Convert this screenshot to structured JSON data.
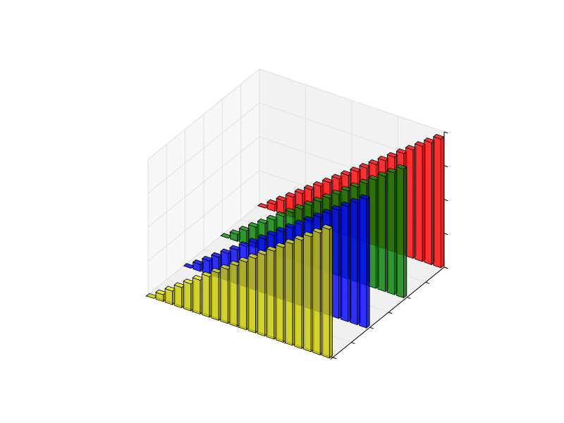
{
  "chart_data": {
    "type": "bar3d",
    "x": [
      0,
      1,
      2,
      3,
      4,
      5,
      6,
      7,
      8,
      9,
      10,
      11,
      12,
      13,
      14,
      15,
      16,
      17,
      18,
      19
    ],
    "series": [
      {
        "color": "#ff0000",
        "depth": 30,
        "values": [
          0,
          1,
          2,
          3,
          4,
          5,
          6,
          7,
          8,
          9,
          10,
          11,
          12,
          13,
          14,
          15,
          16,
          17,
          18,
          19
        ]
      },
      {
        "color": "#008000",
        "depth": 20,
        "values": [
          0,
          1,
          2,
          3,
          4,
          5,
          6,
          7,
          8,
          9,
          10,
          11,
          12,
          13,
          14,
          15,
          16,
          17,
          18,
          19
        ]
      },
      {
        "color": "#0000ff",
        "depth": 10,
        "values": [
          0,
          1,
          2,
          3,
          4,
          5,
          6,
          7,
          8,
          9,
          10,
          11,
          12,
          13,
          14,
          15,
          16,
          17,
          18,
          19
        ]
      },
      {
        "color": "#cccc00",
        "depth": 0,
        "values": [
          0,
          1,
          2,
          3,
          4,
          5,
          6,
          7,
          8,
          9,
          10,
          11,
          12,
          13,
          14,
          15,
          16,
          17,
          18,
          19
        ]
      }
    ],
    "xlim": [
      0,
      20
    ],
    "xticks": [
      0,
      5,
      10,
      15,
      20
    ],
    "ylim": [
      0,
      30
    ],
    "yticks": [
      0,
      5,
      10,
      15,
      20,
      25,
      30
    ],
    "zlim": [
      0,
      20
    ],
    "zticks": [
      0,
      5,
      10,
      15,
      20
    ],
    "grid": true
  }
}
